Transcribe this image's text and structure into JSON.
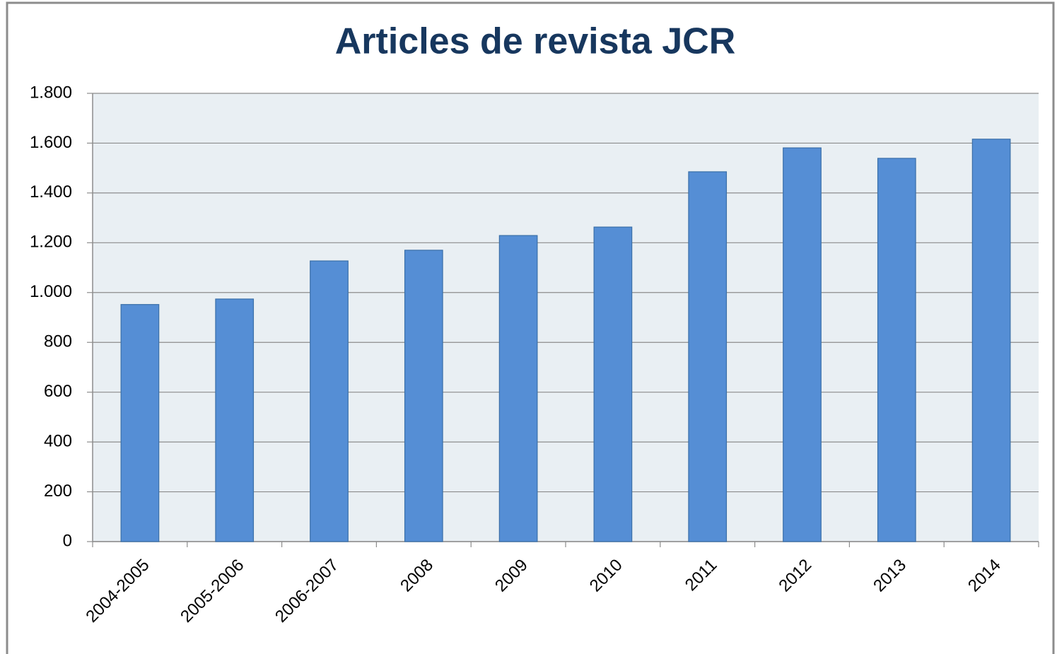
{
  "chart_data": {
    "type": "bar",
    "title": "Articles de revista JCR",
    "categories": [
      "2004-2005",
      "2005-2006",
      "2006-2007",
      "2008",
      "2009",
      "2010",
      "2011",
      "2012",
      "2013",
      "2014"
    ],
    "values": [
      952,
      974,
      1127,
      1170,
      1229,
      1263,
      1485,
      1581,
      1539,
      1616
    ],
    "color": "#558ed5",
    "ylim": [
      0,
      1800
    ],
    "yticks": [
      0,
      200,
      400,
      600,
      800,
      {
        "value": 1000,
        "label": "1.000"
      },
      {
        "value": 1200,
        "label": "1.200"
      },
      {
        "value": 1400,
        "label": "1.400"
      },
      {
        "value": 1600,
        "label": "1.600"
      },
      {
        "value": 1800,
        "label": "1.800"
      }
    ],
    "grid": true
  }
}
